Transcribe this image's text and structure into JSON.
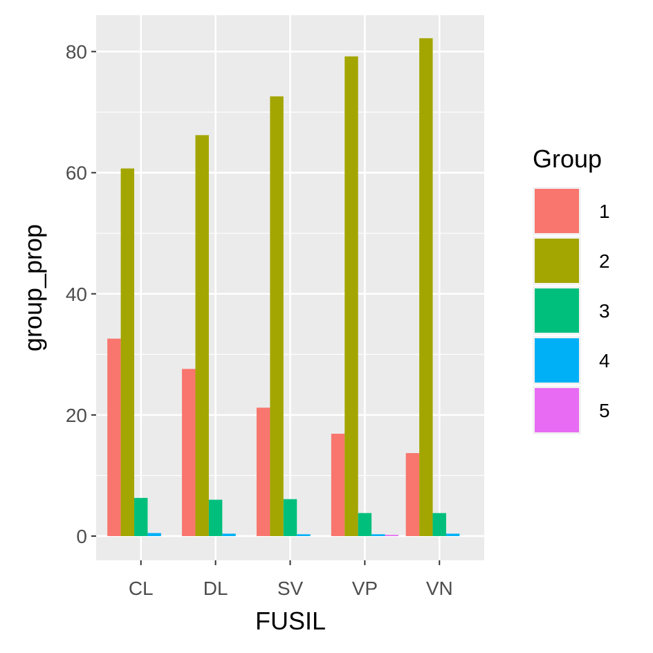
{
  "chart_data": {
    "type": "bar",
    "title": "",
    "xlabel": "FUSIL",
    "ylabel": "group_prop",
    "categories": [
      "CL",
      "DL",
      "SV",
      "VP",
      "VN"
    ],
    "ylim": [
      -4,
      86
    ],
    "yticks": [
      0,
      20,
      40,
      60,
      80
    ],
    "grid": true,
    "legend": {
      "title": "Group",
      "position": "right"
    },
    "series": [
      {
        "name": "1",
        "color": "#F8766D",
        "values": [
          32.6,
          27.6,
          21.2,
          16.9,
          13.7
        ]
      },
      {
        "name": "2",
        "color": "#A3A500",
        "values": [
          60.7,
          66.2,
          72.6,
          79.2,
          82.2
        ]
      },
      {
        "name": "3",
        "color": "#00BF7D",
        "values": [
          6.3,
          6.0,
          6.1,
          3.8,
          3.8
        ]
      },
      {
        "name": "4",
        "color": "#00B0F6",
        "values": [
          0.5,
          0.4,
          0.3,
          0.3,
          0.4
        ]
      },
      {
        "name": "5",
        "color": "#E76BF3",
        "values": [
          0.0,
          0.0,
          0.0,
          0.2,
          0.0
        ]
      }
    ]
  }
}
